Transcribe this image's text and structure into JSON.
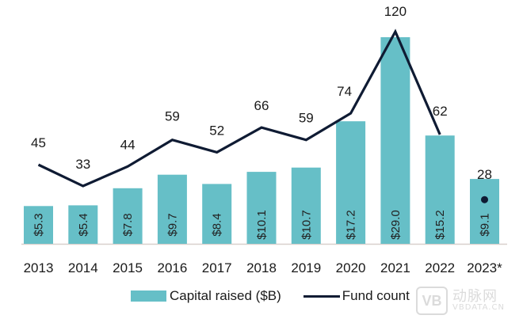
{
  "chart_data": {
    "type": "bar",
    "title": "",
    "xlabel": "",
    "ylabel": "",
    "categories": [
      "2013",
      "2014",
      "2015",
      "2016",
      "2017",
      "2018",
      "2019",
      "2020",
      "2021",
      "2022",
      "2023*"
    ],
    "series": [
      {
        "name": "Capital raised ($B)",
        "type": "bar",
        "color": "#66bfc7",
        "values": [
          5.3,
          5.4,
          7.8,
          9.7,
          8.4,
          10.1,
          10.7,
          17.2,
          29.0,
          15.2,
          9.1
        ],
        "labels": [
          "$5.3",
          "$5.4",
          "$7.8",
          "$9.7",
          "$8.4",
          "$10.1",
          "$10.7",
          "$17.2",
          "$29.0",
          "$15.2",
          "$9.1"
        ]
      },
      {
        "name": "Fund count",
        "type": "line",
        "color": "#0f1b33",
        "values": [
          45,
          33,
          44,
          59,
          52,
          66,
          59,
          74,
          120,
          62,
          28
        ],
        "labels": [
          "45",
          "33",
          "44",
          "59",
          "52",
          "66",
          "59",
          "74",
          "120",
          "62",
          "28"
        ],
        "note": "2023* shown as a single point, not connected to the line"
      }
    ],
    "bar_axis_range": [
      0,
      29
    ],
    "line_axis_range": [
      0,
      120
    ],
    "grid": false,
    "legend_position": "bottom-center"
  },
  "legend": {
    "bar_label": "Capital raised ($B)",
    "line_label": "Fund count"
  },
  "watermark": {
    "logo": "VB",
    "cn": "动脉网",
    "en": "VBDATA.CN"
  }
}
